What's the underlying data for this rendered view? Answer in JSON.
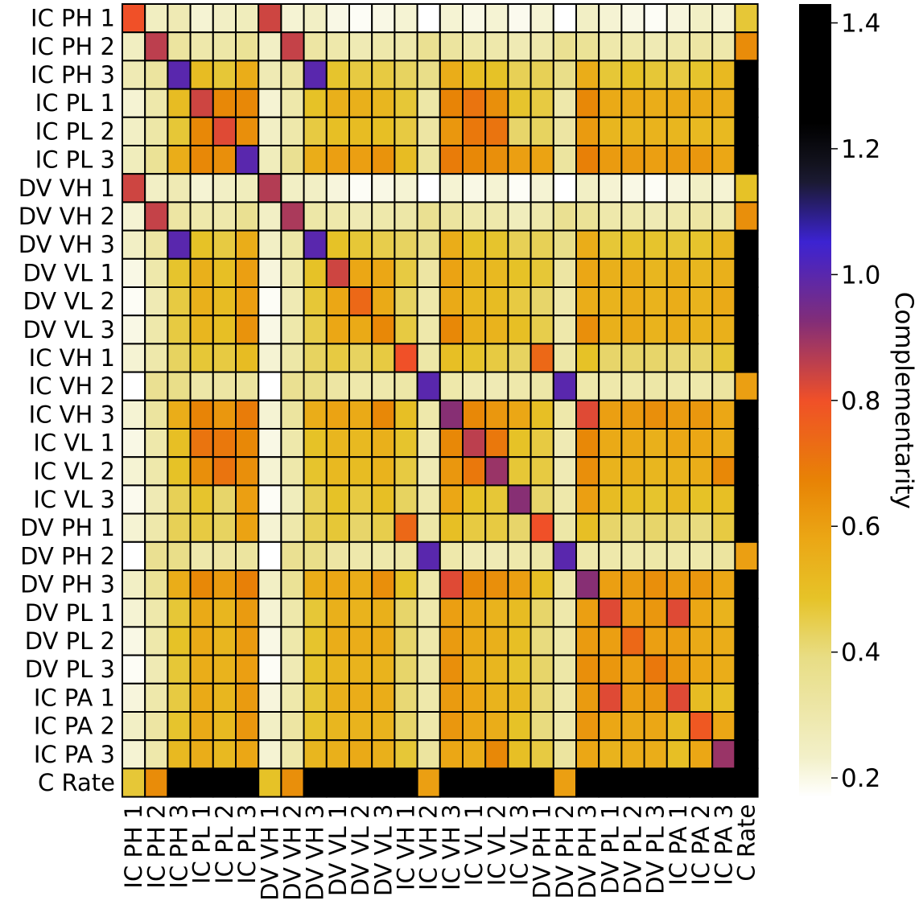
{
  "chart_data": {
    "type": "heatmap",
    "title": "",
    "xlabel": "",
    "ylabel": "",
    "labels": [
      "IC PH 1",
      "IC PH 2",
      "IC PH 3",
      "IC PL 1",
      "IC PL 2",
      "IC PL 3",
      "DV VH 1",
      "DV VH 2",
      "DV VH 3",
      "DV VL 1",
      "DV VL 2",
      "DV VL 3",
      "IC VH 1",
      "IC VH 2",
      "IC VH 3",
      "IC VL 1",
      "IC VL 2",
      "IC VL 3",
      "DV PH 1",
      "DV PH 2",
      "DV PH 3",
      "DV PL 1",
      "DV PL 2",
      "DV PL 3",
      "IC PA 1",
      "IC PA 2",
      "IC PA 3",
      "C Rate"
    ],
    "colorbar": {
      "label": "Complementarity",
      "range": [
        0.17,
        1.43
      ],
      "ticks": [
        "0.2",
        "0.4",
        "0.6",
        "0.8",
        "1.0",
        "1.2",
        "1.4"
      ],
      "colormap": "CMRmap_r"
    },
    "values": [
      [
        0.8,
        0.25,
        0.28,
        0.22,
        0.24,
        0.26,
        0.84,
        0.22,
        0.24,
        0.2,
        0.18,
        0.2,
        0.22,
        0.17,
        0.22,
        0.2,
        0.22,
        0.19,
        0.22,
        0.17,
        0.24,
        0.22,
        0.2,
        0.18,
        0.21,
        0.24,
        0.22,
        0.47
      ],
      [
        0.25,
        0.86,
        0.33,
        0.3,
        0.31,
        0.35,
        0.24,
        0.85,
        0.32,
        0.3,
        0.28,
        0.3,
        0.3,
        0.36,
        0.33,
        0.3,
        0.3,
        0.28,
        0.3,
        0.36,
        0.35,
        0.3,
        0.3,
        0.28,
        0.3,
        0.32,
        0.3,
        0.65
      ],
      [
        0.28,
        0.33,
        1.0,
        0.51,
        0.47,
        0.56,
        0.28,
        0.32,
        1.0,
        0.48,
        0.46,
        0.46,
        0.43,
        0.38,
        0.56,
        0.5,
        0.49,
        0.44,
        0.44,
        0.38,
        0.56,
        0.47,
        0.49,
        0.47,
        0.46,
        0.48,
        0.52,
        1.43
      ],
      [
        0.22,
        0.3,
        0.51,
        0.84,
        0.66,
        0.66,
        0.22,
        0.3,
        0.49,
        0.55,
        0.55,
        0.53,
        0.47,
        0.31,
        0.67,
        0.71,
        0.64,
        0.48,
        0.46,
        0.3,
        0.66,
        0.57,
        0.57,
        0.56,
        0.57,
        0.57,
        0.56,
        1.43
      ],
      [
        0.24,
        0.31,
        0.47,
        0.66,
        0.82,
        0.64,
        0.24,
        0.3,
        0.46,
        0.5,
        0.51,
        0.5,
        0.46,
        0.32,
        0.62,
        0.7,
        0.71,
        0.42,
        0.43,
        0.32,
        0.61,
        0.53,
        0.53,
        0.54,
        0.53,
        0.52,
        0.52,
        1.43
      ],
      [
        0.26,
        0.35,
        0.56,
        0.66,
        0.64,
        1.0,
        0.26,
        0.36,
        0.56,
        0.6,
        0.6,
        0.63,
        0.51,
        0.33,
        0.69,
        0.66,
        0.64,
        0.6,
        0.59,
        0.33,
        0.68,
        0.61,
        0.61,
        0.6,
        0.61,
        0.62,
        0.58,
        1.43
      ],
      [
        0.84,
        0.24,
        0.28,
        0.22,
        0.24,
        0.26,
        0.87,
        0.24,
        0.24,
        0.21,
        0.18,
        0.2,
        0.22,
        0.17,
        0.22,
        0.2,
        0.22,
        0.18,
        0.22,
        0.17,
        0.24,
        0.22,
        0.2,
        0.18,
        0.21,
        0.24,
        0.22,
        0.49
      ],
      [
        0.22,
        0.85,
        0.32,
        0.3,
        0.3,
        0.36,
        0.24,
        0.88,
        0.31,
        0.3,
        0.28,
        0.3,
        0.31,
        0.36,
        0.33,
        0.3,
        0.3,
        0.26,
        0.3,
        0.36,
        0.35,
        0.3,
        0.3,
        0.28,
        0.3,
        0.32,
        0.3,
        0.64
      ],
      [
        0.24,
        0.32,
        1.0,
        0.49,
        0.46,
        0.56,
        0.24,
        0.31,
        1.0,
        0.49,
        0.47,
        0.45,
        0.43,
        0.38,
        0.56,
        0.49,
        0.48,
        0.44,
        0.44,
        0.38,
        0.56,
        0.47,
        0.48,
        0.48,
        0.47,
        0.48,
        0.53,
        1.43
      ],
      [
        0.2,
        0.3,
        0.48,
        0.55,
        0.5,
        0.6,
        0.21,
        0.3,
        0.49,
        0.84,
        0.58,
        0.58,
        0.46,
        0.32,
        0.59,
        0.53,
        0.52,
        0.49,
        0.47,
        0.32,
        0.58,
        0.55,
        0.56,
        0.53,
        0.55,
        0.53,
        0.55,
        1.43
      ],
      [
        0.18,
        0.28,
        0.46,
        0.55,
        0.51,
        0.6,
        0.18,
        0.28,
        0.47,
        0.58,
        0.74,
        0.57,
        0.43,
        0.3,
        0.57,
        0.52,
        0.51,
        0.46,
        0.42,
        0.3,
        0.56,
        0.54,
        0.56,
        0.54,
        0.56,
        0.54,
        0.57,
        1.43
      ],
      [
        0.2,
        0.3,
        0.46,
        0.53,
        0.5,
        0.63,
        0.2,
        0.3,
        0.45,
        0.58,
        0.57,
        0.66,
        0.46,
        0.3,
        0.66,
        0.55,
        0.54,
        0.5,
        0.45,
        0.3,
        0.64,
        0.55,
        0.57,
        0.54,
        0.56,
        0.54,
        0.55,
        1.43
      ],
      [
        0.22,
        0.3,
        0.43,
        0.47,
        0.46,
        0.51,
        0.22,
        0.31,
        0.43,
        0.46,
        0.43,
        0.46,
        0.8,
        0.31,
        0.5,
        0.48,
        0.46,
        0.43,
        0.74,
        0.31,
        0.49,
        0.42,
        0.42,
        0.42,
        0.41,
        0.42,
        0.47,
        1.43
      ],
      [
        0.17,
        0.36,
        0.38,
        0.31,
        0.32,
        0.33,
        0.17,
        0.36,
        0.38,
        0.32,
        0.3,
        0.3,
        0.31,
        1.0,
        0.3,
        0.28,
        0.28,
        0.3,
        0.31,
        1.0,
        0.3,
        0.3,
        0.3,
        0.31,
        0.3,
        0.3,
        0.33,
        0.6
      ],
      [
        0.22,
        0.33,
        0.56,
        0.67,
        0.62,
        0.69,
        0.22,
        0.33,
        0.56,
        0.59,
        0.57,
        0.66,
        0.5,
        0.3,
        0.92,
        0.66,
        0.62,
        0.58,
        0.5,
        0.3,
        0.82,
        0.6,
        0.61,
        0.64,
        0.61,
        0.62,
        0.58,
        1.43
      ],
      [
        0.2,
        0.3,
        0.5,
        0.71,
        0.7,
        0.66,
        0.2,
        0.3,
        0.49,
        0.53,
        0.52,
        0.55,
        0.48,
        0.28,
        0.66,
        0.86,
        0.7,
        0.49,
        0.46,
        0.28,
        0.66,
        0.57,
        0.57,
        0.55,
        0.58,
        0.58,
        0.56,
        1.43
      ],
      [
        0.22,
        0.3,
        0.49,
        0.64,
        0.71,
        0.64,
        0.22,
        0.3,
        0.48,
        0.52,
        0.51,
        0.54,
        0.46,
        0.28,
        0.62,
        0.7,
        0.9,
        0.47,
        0.46,
        0.28,
        0.64,
        0.54,
        0.55,
        0.53,
        0.54,
        0.56,
        0.66,
        1.43
      ],
      [
        0.19,
        0.28,
        0.44,
        0.48,
        0.42,
        0.6,
        0.18,
        0.26,
        0.44,
        0.49,
        0.46,
        0.5,
        0.43,
        0.3,
        0.58,
        0.49,
        0.47,
        0.92,
        0.42,
        0.3,
        0.6,
        0.51,
        0.5,
        0.48,
        0.52,
        0.49,
        0.5,
        1.43
      ],
      [
        0.22,
        0.3,
        0.44,
        0.46,
        0.43,
        0.59,
        0.22,
        0.3,
        0.44,
        0.47,
        0.42,
        0.45,
        0.74,
        0.31,
        0.5,
        0.46,
        0.46,
        0.42,
        0.8,
        0.31,
        0.5,
        0.42,
        0.4,
        0.42,
        0.41,
        0.4,
        0.46,
        1.43
      ],
      [
        0.17,
        0.36,
        0.38,
        0.3,
        0.32,
        0.33,
        0.17,
        0.36,
        0.38,
        0.32,
        0.3,
        0.3,
        0.31,
        1.0,
        0.3,
        0.28,
        0.28,
        0.3,
        0.31,
        1.0,
        0.3,
        0.3,
        0.3,
        0.31,
        0.3,
        0.3,
        0.33,
        0.6
      ],
      [
        0.24,
        0.35,
        0.56,
        0.66,
        0.61,
        0.68,
        0.24,
        0.35,
        0.56,
        0.58,
        0.56,
        0.64,
        0.49,
        0.3,
        0.82,
        0.66,
        0.64,
        0.6,
        0.5,
        0.3,
        0.92,
        0.6,
        0.61,
        0.64,
        0.61,
        0.62,
        0.58,
        1.43
      ],
      [
        0.22,
        0.3,
        0.47,
        0.57,
        0.53,
        0.61,
        0.22,
        0.3,
        0.47,
        0.55,
        0.54,
        0.55,
        0.42,
        0.3,
        0.6,
        0.57,
        0.54,
        0.51,
        0.42,
        0.3,
        0.6,
        0.82,
        0.6,
        0.62,
        0.82,
        0.58,
        0.54,
        1.43
      ],
      [
        0.2,
        0.3,
        0.49,
        0.57,
        0.53,
        0.61,
        0.2,
        0.3,
        0.48,
        0.56,
        0.56,
        0.57,
        0.42,
        0.3,
        0.61,
        0.57,
        0.55,
        0.5,
        0.4,
        0.3,
        0.61,
        0.6,
        0.74,
        0.6,
        0.6,
        0.57,
        0.56,
        1.43
      ],
      [
        0.18,
        0.28,
        0.47,
        0.56,
        0.54,
        0.6,
        0.18,
        0.28,
        0.48,
        0.53,
        0.54,
        0.54,
        0.42,
        0.31,
        0.64,
        0.55,
        0.53,
        0.48,
        0.42,
        0.31,
        0.64,
        0.62,
        0.6,
        0.7,
        0.62,
        0.58,
        0.56,
        1.43
      ],
      [
        0.21,
        0.3,
        0.46,
        0.57,
        0.53,
        0.61,
        0.21,
        0.3,
        0.47,
        0.55,
        0.56,
        0.56,
        0.41,
        0.3,
        0.61,
        0.58,
        0.54,
        0.52,
        0.41,
        0.3,
        0.61,
        0.82,
        0.6,
        0.62,
        0.82,
        0.51,
        0.5,
        1.43
      ],
      [
        0.24,
        0.32,
        0.48,
        0.57,
        0.52,
        0.62,
        0.24,
        0.32,
        0.48,
        0.53,
        0.54,
        0.54,
        0.42,
        0.3,
        0.62,
        0.58,
        0.56,
        0.49,
        0.4,
        0.3,
        0.62,
        0.58,
        0.57,
        0.58,
        0.51,
        0.78,
        0.58,
        1.43
      ],
      [
        0.22,
        0.3,
        0.52,
        0.56,
        0.52,
        0.58,
        0.22,
        0.3,
        0.53,
        0.55,
        0.57,
        0.55,
        0.47,
        0.33,
        0.58,
        0.56,
        0.66,
        0.5,
        0.46,
        0.33,
        0.58,
        0.54,
        0.56,
        0.56,
        0.5,
        0.58,
        0.9,
        1.43
      ],
      [
        0.47,
        0.65,
        1.43,
        1.43,
        1.43,
        1.43,
        0.49,
        0.64,
        1.43,
        1.43,
        1.43,
        1.43,
        1.43,
        0.6,
        1.43,
        1.43,
        1.43,
        1.43,
        1.43,
        0.6,
        1.43,
        1.43,
        1.43,
        1.43,
        1.43,
        1.43,
        1.43,
        1.43
      ]
    ]
  }
}
